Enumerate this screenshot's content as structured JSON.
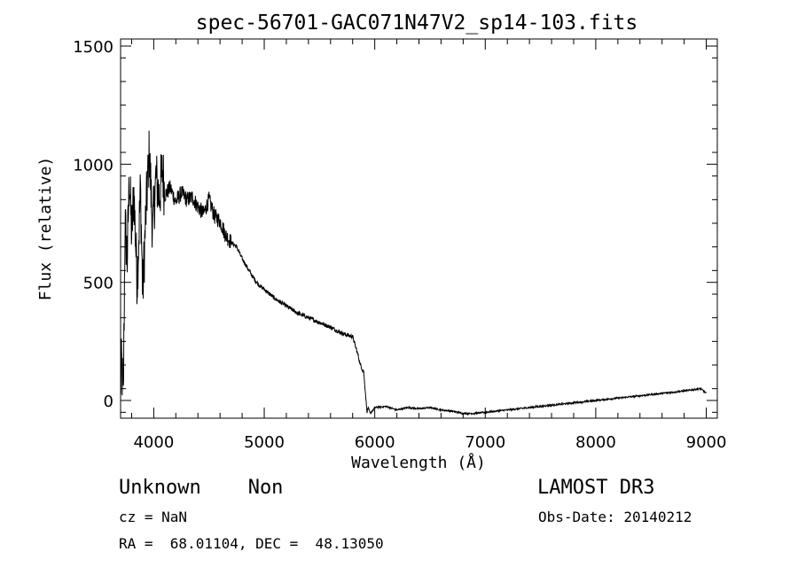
{
  "chart_data": {
    "type": "line",
    "title": "spec-56701-GAC071N47V2_sp14-103.fits",
    "xlabel": "Wavelength (Å)",
    "ylabel": "Flux (relative)",
    "xlim": [
      3700,
      9100
    ],
    "ylim": [
      -75,
      1530
    ],
    "xticks": [
      4000,
      5000,
      6000,
      7000,
      8000,
      9000
    ],
    "xtick_labels": [
      "4000",
      "5000",
      "6000",
      "7000",
      "8000",
      "9000"
    ],
    "yticks": [
      0,
      500,
      1000,
      1500
    ],
    "ytick_labels": [
      "0",
      "500",
      "1000",
      "1500"
    ],
    "grid": false,
    "series": [
      {
        "name": "flux",
        "x": [
          3700,
          3710,
          3725,
          3740,
          3760,
          3780,
          3800,
          3820,
          3850,
          3880,
          3900,
          3930,
          3960,
          3990,
          4020,
          4050,
          4080,
          4100,
          4150,
          4200,
          4250,
          4300,
          4350,
          4400,
          4450,
          4500,
          4550,
          4600,
          4650,
          4700,
          4750,
          4800,
          4850,
          4900,
          4950,
          5000,
          5100,
          5200,
          5300,
          5400,
          5500,
          5600,
          5700,
          5800,
          5850,
          5870,
          5900,
          5930,
          5940,
          5960,
          6000,
          6100,
          6200,
          6300,
          6400,
          6500,
          6600,
          6700,
          6800,
          6900,
          7000,
          7200,
          7400,
          7600,
          7800,
          8000,
          8200,
          8400,
          8600,
          8800,
          8950,
          9000
        ],
        "y": [
          50,
          160,
          0,
          750,
          600,
          950,
          700,
          880,
          500,
          900,
          450,
          800,
          1050,
          720,
          950,
          860,
          980,
          870,
          900,
          840,
          880,
          850,
          860,
          820,
          790,
          850,
          780,
          760,
          700,
          670,
          650,
          600,
          560,
          520,
          490,
          470,
          430,
          400,
          370,
          350,
          330,
          310,
          285,
          270,
          190,
          150,
          120,
          -50,
          -30,
          -55,
          -30,
          -25,
          -40,
          -30,
          -35,
          -30,
          -40,
          -45,
          -55,
          -55,
          -50,
          -40,
          -30,
          -20,
          -10,
          0,
          10,
          20,
          30,
          40,
          50,
          30
        ]
      }
    ]
  },
  "info": {
    "class_line": "Unknown    Non",
    "survey": "LAMOST DR3",
    "cz_line": "cz = NaN",
    "obs_date_line": "Obs-Date: 20140212",
    "coords_line": "RA =  68.01104, DEC =  48.13050"
  }
}
